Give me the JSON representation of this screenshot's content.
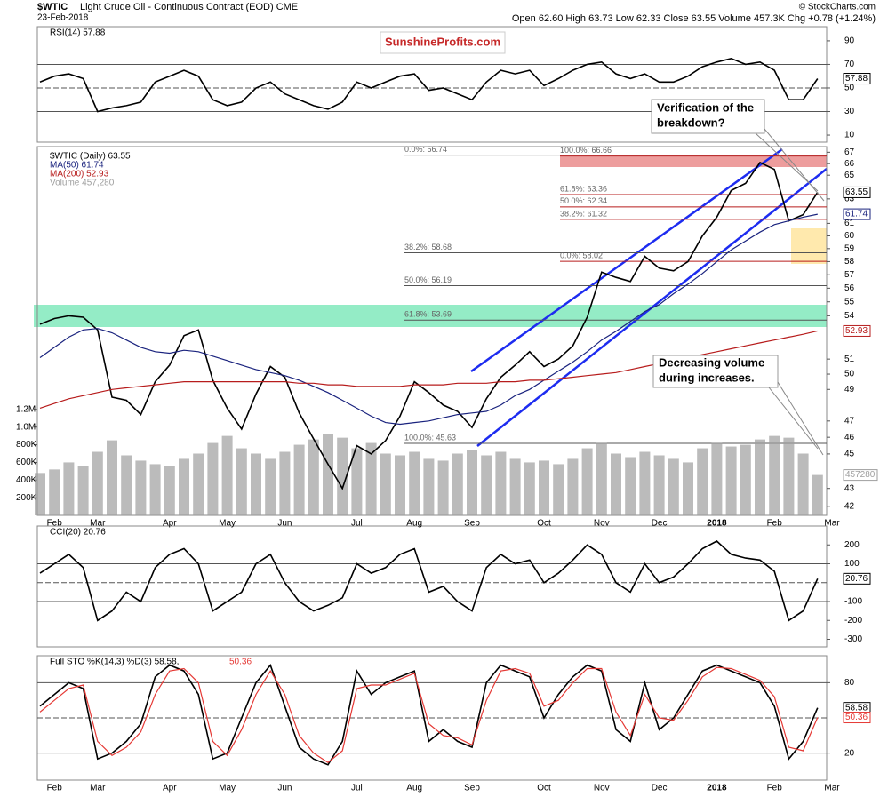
{
  "header": {
    "symbol": "$WTIC",
    "title": "Light Crude Oil - Continuous Contract (EOD) CME",
    "date": "23-Feb-2018",
    "copyright": "© StockCharts.com",
    "quote": "Open 62.60 High 63.73 Low 62.33 Close 63.55 Volume 457.3K Chg +0.78 (+1.24%)",
    "logo": "SunshineProfits.com"
  },
  "chart_data": [
    {
      "type": "line",
      "series": [
        {
          "name": "RSI(14) 57.88",
          "color": "#000000",
          "values": [
            55,
            60,
            62,
            58,
            30,
            33,
            35,
            38,
            55,
            60,
            65,
            60,
            40,
            35,
            38,
            50,
            55,
            45,
            40,
            35,
            32,
            38,
            55,
            50,
            55,
            60,
            62,
            48,
            50,
            45,
            40,
            55,
            65,
            62,
            65,
            52,
            58,
            65,
            70,
            72,
            62,
            58,
            62,
            55,
            55,
            60,
            68,
            72,
            75,
            70,
            72,
            65,
            40,
            40,
            57.88,
            null
          ]
        }
      ],
      "ylim": [
        4,
        102
      ],
      "yticks": [
        10,
        30,
        50,
        70,
        90
      ],
      "ref_lines": [
        {
          "value": 70,
          "style": "solid"
        },
        {
          "value": 50,
          "style": "dashed"
        },
        {
          "value": 30,
          "style": "solid"
        }
      ]
    },
    {
      "type": "line",
      "log_scale": true,
      "categories": [
        null,
        "Feb",
        null,
        null,
        "Mar",
        null,
        null,
        null,
        null,
        "Apr",
        null,
        null,
        null,
        "May",
        null,
        null,
        null,
        "Jun",
        null,
        null,
        null,
        null,
        "Jul",
        null,
        null,
        null,
        "Aug",
        null,
        null,
        null,
        "Sep",
        null,
        null,
        null,
        null,
        "Oct",
        null,
        null,
        null,
        "Nov",
        null,
        null,
        null,
        "Dec",
        null,
        null,
        null,
        "2018",
        null,
        null,
        null,
        "Feb",
        null,
        null,
        null,
        "Mar"
      ],
      "series": [
        {
          "name": "$WTIC (Daily) 63.55",
          "color": "#000000",
          "values": [
            53.4,
            53.8,
            54.0,
            53.9,
            53.0,
            48.5,
            48.3,
            47.4,
            49.5,
            50.6,
            52.6,
            53.0,
            49.6,
            47.8,
            46.5,
            48.7,
            50.5,
            49.8,
            47.5,
            45.9,
            44.4,
            43.0,
            45.5,
            45.0,
            45.8,
            47.3,
            49.5,
            48.8,
            48.0,
            47.6,
            46.6,
            48.4,
            49.8,
            50.6,
            51.5,
            50.5,
            51.0,
            51.9,
            53.9,
            57.2,
            56.8,
            56.5,
            58.4,
            57.5,
            57.3,
            58.0,
            60.0,
            61.5,
            63.7,
            64.3,
            66.1,
            65.5,
            61.2,
            61.7,
            63.55,
            null
          ]
        },
        {
          "name": "MA(50) 61.74",
          "color": "#1a237e",
          "values": [
            51.1,
            51.8,
            52.5,
            53.0,
            53.1,
            52.8,
            52.3,
            51.8,
            51.5,
            51.4,
            51.6,
            51.5,
            51.2,
            50.9,
            50.6,
            50.3,
            50.1,
            49.9,
            49.6,
            49.2,
            48.8,
            48.3,
            47.8,
            47.3,
            46.9,
            46.8,
            46.9,
            47.0,
            47.2,
            47.4,
            47.5,
            47.6,
            48.0,
            48.6,
            49.0,
            49.6,
            50.2,
            50.8,
            51.5,
            52.3,
            52.9,
            53.6,
            54.3,
            54.8,
            55.6,
            56.3,
            57.1,
            58.0,
            58.9,
            59.6,
            60.3,
            60.9,
            61.2,
            61.5,
            61.74,
            null
          ]
        },
        {
          "name": "MA(200) 52.93",
          "color": "#b71c1c",
          "values": [
            47.8,
            48.1,
            48.4,
            48.6,
            48.8,
            49.0,
            49.1,
            49.2,
            49.3,
            49.4,
            49.5,
            49.5,
            49.5,
            49.5,
            49.5,
            49.5,
            49.5,
            49.5,
            49.4,
            49.4,
            49.3,
            49.3,
            49.2,
            49.2,
            49.2,
            49.2,
            49.3,
            49.3,
            49.3,
            49.4,
            49.4,
            49.4,
            49.5,
            49.5,
            49.6,
            49.6,
            49.7,
            49.8,
            49.9,
            50.0,
            50.1,
            50.3,
            50.5,
            50.7,
            50.9,
            51.1,
            51.3,
            51.5,
            51.7,
            51.9,
            52.1,
            52.3,
            52.5,
            52.7,
            52.93,
            null
          ]
        },
        {
          "name": "Volume 457,280",
          "color": "#9e9e9e",
          "axis": "y2",
          "values": [
            480000,
            520000,
            600000,
            560000,
            720000,
            850000,
            680000,
            620000,
            580000,
            560000,
            640000,
            700000,
            820000,
            900000,
            760000,
            700000,
            640000,
            720000,
            800000,
            860000,
            920000,
            880000,
            760000,
            820000,
            700000,
            680000,
            720000,
            640000,
            620000,
            700000,
            740000,
            680000,
            720000,
            640000,
            600000,
            620000,
            580000,
            640000,
            760000,
            820000,
            700000,
            660000,
            720000,
            680000,
            640000,
            600000,
            760000,
            820000,
            780000,
            800000,
            860000,
            900000,
            880000,
            700000,
            457280,
            null
          ]
        }
      ],
      "ylim": [
        41.5,
        67.5
      ],
      "yticks": [
        42,
        43,
        45,
        46,
        47,
        49,
        50,
        51,
        54,
        55,
        56,
        57,
        58,
        59,
        60,
        61,
        63,
        65,
        66,
        67
      ],
      "y2lim": [
        0,
        4180000
      ],
      "y2ticks": [
        {
          "value": 200000,
          "label": "200K"
        },
        {
          "value": 400000,
          "label": "400K"
        },
        {
          "value": 600000,
          "label": "600K"
        },
        {
          "value": 800000,
          "label": "800K"
        },
        {
          "value": 1000000,
          "label": "1.0M"
        },
        {
          "value": 1200000,
          "label": "1.2M"
        }
      ],
      "fib_levels": [
        {
          "label": "0.0%: 66.74",
          "value": 66.74,
          "color": "#555555"
        },
        {
          "label": "100.0%: 66.66",
          "value": 66.66,
          "color": "#b71c1c"
        },
        {
          "label": "61.8%: 63.36",
          "value": 63.36,
          "color": "#b71c1c"
        },
        {
          "label": "50.0%: 62.34",
          "value": 62.34,
          "color": "#b71c1c"
        },
        {
          "label": "38.2%: 61.32",
          "value": 61.32,
          "color": "#b71c1c"
        },
        {
          "label": "38.2%: 58.68",
          "value": 58.68,
          "color": "#555555"
        },
        {
          "label": "0.0%: 58.02",
          "value": 58.02,
          "color": "#b71c1c"
        },
        {
          "label": "50.0%: 56.19",
          "value": 56.19,
          "color": "#555555"
        },
        {
          "label": "61.8%: 53.69",
          "value": 53.69,
          "color": "#555555"
        },
        {
          "label": "100.0%: 45.63",
          "value": 45.63,
          "color": "#555555"
        }
      ],
      "annotations": [
        [
          "Verification of the",
          "breakdown?"
        ],
        [
          "Decreasing volume",
          "during increases."
        ]
      ]
    },
    {
      "type": "line",
      "series": [
        {
          "name": "CCI(20) 20.76",
          "color": "#000000",
          "values": [
            50,
            100,
            150,
            80,
            -200,
            -150,
            -50,
            -100,
            80,
            150,
            180,
            100,
            -150,
            -100,
            -50,
            100,
            150,
            0,
            -100,
            -150,
            -120,
            -80,
            100,
            50,
            80,
            150,
            180,
            -50,
            -20,
            -100,
            -150,
            80,
            150,
            100,
            120,
            0,
            50,
            120,
            200,
            150,
            0,
            -50,
            100,
            0,
            30,
            100,
            180,
            220,
            150,
            130,
            120,
            60,
            -200,
            -150,
            20.76,
            null
          ]
        }
      ],
      "ylim": [
        -340,
        300
      ],
      "yticks": [
        -300,
        -200,
        -100,
        100,
        200
      ],
      "ref_lines": [
        {
          "value": 100,
          "style": "solid"
        },
        {
          "value": 0,
          "style": "dashed"
        },
        {
          "value": -100,
          "style": "solid"
        }
      ]
    },
    {
      "type": "line",
      "series": [
        {
          "name": "Full STO %K(14,3) %D(3) 58.58,",
          "color": "#000000",
          "values": [
            60,
            70,
            80,
            75,
            15,
            20,
            30,
            45,
            85,
            95,
            90,
            70,
            15,
            20,
            50,
            80,
            95,
            60,
            25,
            15,
            10,
            30,
            90,
            70,
            80,
            85,
            90,
            30,
            40,
            30,
            25,
            80,
            95,
            90,
            85,
            50,
            70,
            85,
            95,
            90,
            40,
            30,
            80,
            40,
            50,
            70,
            90,
            95,
            90,
            85,
            80,
            60,
            15,
            30,
            58.58,
            null
          ]
        },
        {
          "name": "50.36",
          "color": "#e53935",
          "values": [
            55,
            65,
            75,
            78,
            30,
            18,
            25,
            38,
            70,
            90,
            92,
            80,
            30,
            18,
            40,
            70,
            90,
            70,
            35,
            20,
            12,
            22,
            75,
            78,
            78,
            83,
            88,
            45,
            35,
            33,
            27,
            65,
            90,
            92,
            88,
            60,
            65,
            80,
            92,
            92,
            55,
            35,
            70,
            50,
            48,
            65,
            85,
            93,
            92,
            87,
            82,
            68,
            25,
            22,
            50.36,
            null
          ]
        }
      ],
      "ylim": [
        -3,
        103
      ],
      "yticks": [
        20,
        80
      ],
      "ref_lines": [
        {
          "value": 80,
          "style": "solid"
        },
        {
          "value": 50,
          "style": "dashed"
        },
        {
          "value": 20,
          "style": "solid"
        }
      ]
    }
  ]
}
